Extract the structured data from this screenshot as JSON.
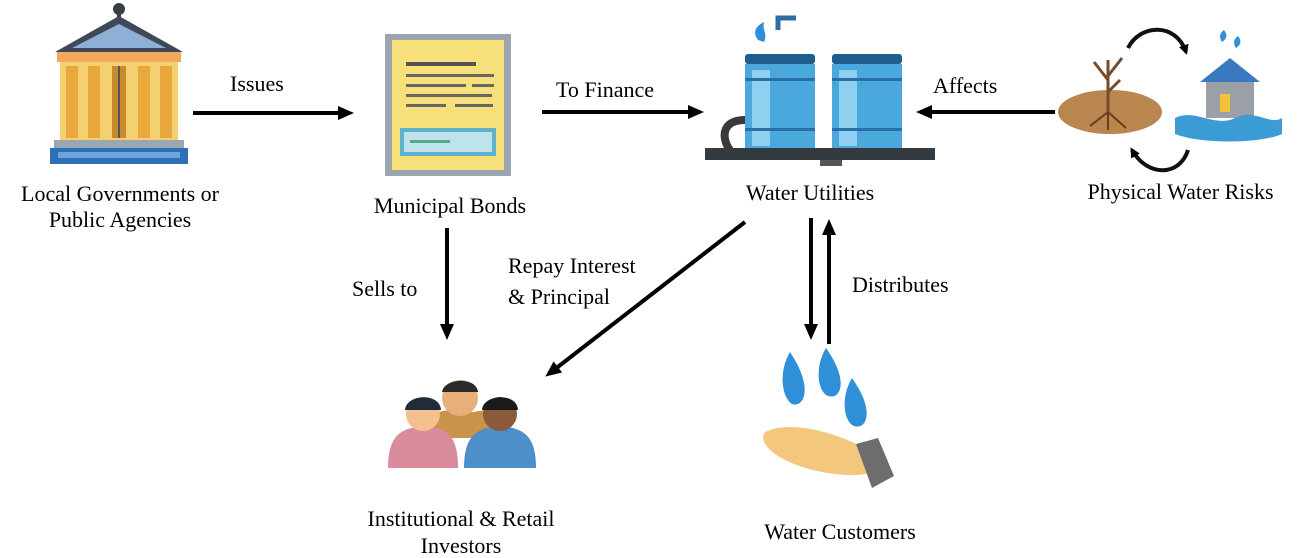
{
  "nodes": {
    "government": {
      "label_line1": "Local Governments  or",
      "label_line2": "Public Agencies",
      "icon": "government-building-icon"
    },
    "bonds": {
      "label": "Municipal  Bonds",
      "icon": "bond-certificate-icon"
    },
    "utilities": {
      "label": "Water  Utilities",
      "icon": "water-tanks-icon"
    },
    "risks": {
      "label": "Physical  Water  Risks",
      "icon": "drought-flood-cycle-icon"
    },
    "investors": {
      "label_line1": "Institutional  &  Retail",
      "label_line2": "Investors",
      "icon": "investors-group-icon"
    },
    "customers": {
      "label": "Water Customers",
      "icon": "hand-water-drops-icon"
    }
  },
  "edges": {
    "issues": "Issues",
    "to_finance": "To Finance",
    "affects": "Affects",
    "sells_to": "Sells to",
    "repay_line1": "Repay  Interest",
    "repay_line2": "& Principal",
    "distributes": "Distributes"
  }
}
